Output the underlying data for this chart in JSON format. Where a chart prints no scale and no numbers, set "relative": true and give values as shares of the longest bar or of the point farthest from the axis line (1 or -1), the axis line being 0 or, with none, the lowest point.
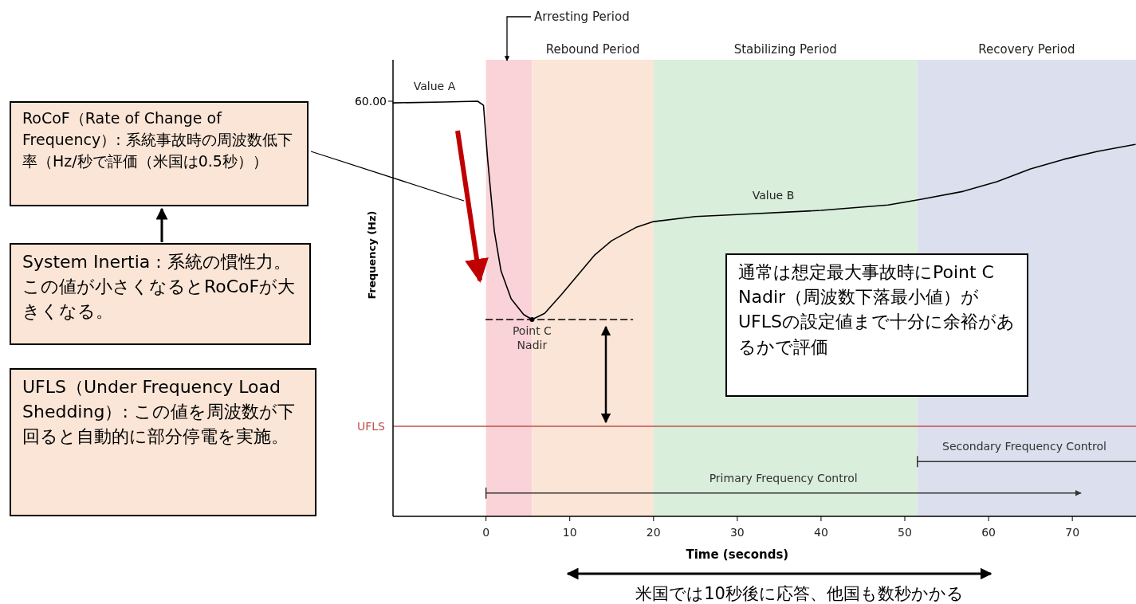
{
  "chart_data": {
    "type": "line",
    "relative": true,
    "xlabel": "Time (seconds)",
    "ylabel": "Frequency (Hz)",
    "xlim": [
      -11.1,
      77.6
    ],
    "xticks": [
      0,
      10,
      20,
      30,
      40,
      50,
      60,
      70
    ],
    "marker": "none",
    "series": [
      {
        "color": "#000000",
        "x": [
          -11.1,
          -5,
          -1,
          -0.3,
          0.2,
          1,
          1.8,
          3,
          4.5,
          5.5,
          7,
          9,
          11,
          13,
          15,
          18,
          20,
          25,
          30,
          40,
          48,
          52,
          57,
          61,
          65,
          69,
          73,
          77.5
        ],
        "values": [
          0.996,
          0.998,
          1,
          0.99,
          0.86,
          0.687,
          0.591,
          0.524,
          0.486,
          0.474,
          0.489,
          0.534,
          0.582,
          0.63,
          0.664,
          0.697,
          0.71,
          0.722,
          0.727,
          0.737,
          0.75,
          0.764,
          0.783,
          0.806,
          0.837,
          0.86,
          0.879,
          0.896
        ]
      },
      {
        "color": "#000000",
        "line_style": "dashed",
        "x": [
          0,
          17.5
        ],
        "values": [
          0.474,
          0.474
        ]
      },
      {
        "name": "Secondary Frequency Control",
        "color": "#333333",
        "x": [
          51.5,
          77.6
        ],
        "values": [
          0.132,
          0.132
        ]
      },
      {
        "name": "Primary Frequency Control",
        "color": "#333333",
        "x": [
          0,
          71
        ],
        "values": [
          0.056,
          0.056
        ]
      }
    ],
    "ref_lines": [
      {
        "axis": "y",
        "value": 0.217,
        "label": "UFLS",
        "color": "#c0504d"
      }
    ],
    "bands": [
      {
        "axis": "x",
        "from": 0,
        "to": 5.5,
        "label": "Arresting Period",
        "color": "#f9d3d7"
      },
      {
        "axis": "x",
        "from": 5.5,
        "to": 20,
        "label": "Rebound Period",
        "color": "#fbe5d6"
      },
      {
        "axis": "x",
        "from": 20,
        "to": 51.5,
        "label": "Stabilizing Period",
        "color": "#d9eedb"
      },
      {
        "axis": "x",
        "from": 51.5,
        "to": 77.6,
        "label": "Recovery Period",
        "color": "#dcdfed"
      }
    ],
    "annotations": [
      {
        "text": "60.00",
        "x": -11.1,
        "y": 1
      },
      {
        "text": "Point C Nadir",
        "x": 5.5,
        "y": 0.474
      },
      "Value A",
      "Value B",
      "RoCoF（Rate of Change of Frequency）: 系統事故時の周波数低下率（Hz/秒で評価（米国は0.5秒））",
      "System Inertia : 系統の慣性力。この値が小さくなるとRoCoFが大きくなる。",
      "UFLS（Under Frequency Load Shedding）: この値を周波数が下回ると自動的に部分停電を実施。",
      "通常は想定最大事故時にPoint C Nadir（周波数下落最小値）がUFLSの設定値まで十分に余裕があるかで評価",
      "米国では10秒後に応答、他国も数秒かかる"
    ]
  }
}
